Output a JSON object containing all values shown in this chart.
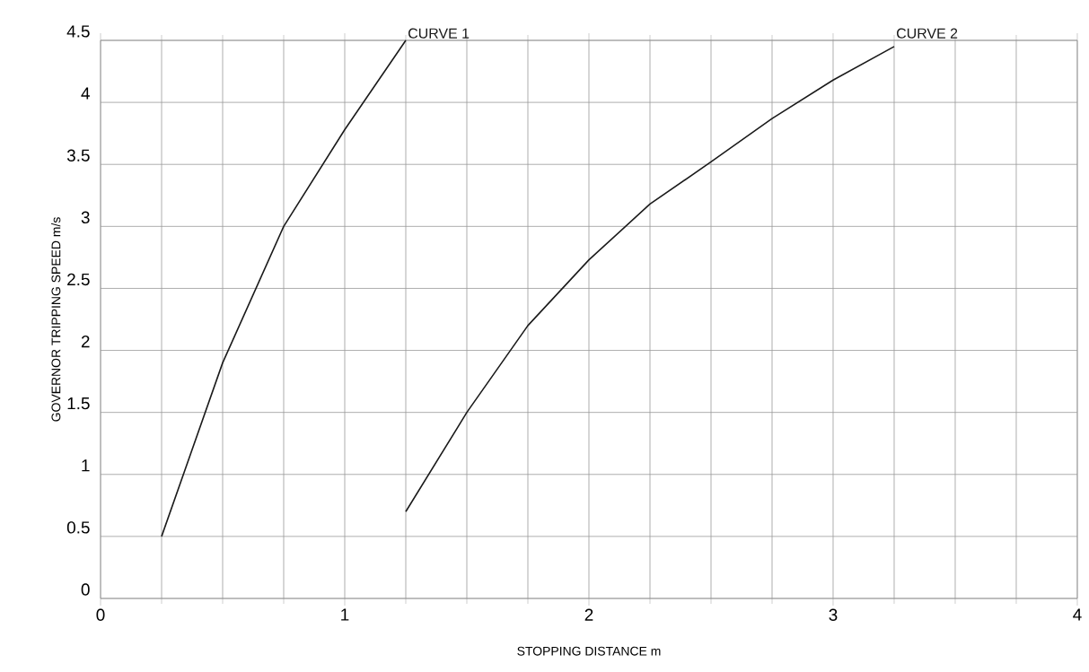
{
  "chart_data": {
    "type": "line",
    "xlabel": "STOPPING DISTANCE m",
    "ylabel": "GOVERNOR TRIPPING SPEED  m/s",
    "xlim": [
      0,
      4
    ],
    "ylim": [
      0,
      4.5
    ],
    "xticks": [
      0,
      1,
      2,
      3,
      4
    ],
    "yticks": [
      0,
      0.5,
      1,
      1.5,
      2,
      2.5,
      3,
      3.5,
      4,
      4.5
    ],
    "grid": true,
    "marker": "none",
    "line_style": "solid",
    "series": [
      {
        "name": "CURVE 1",
        "color": "#1a1a1a",
        "x": [
          0.25,
          0.5,
          0.75,
          1.0,
          1.25
        ],
        "values": [
          0.5,
          1.9,
          3.0,
          3.78,
          4.5
        ]
      },
      {
        "name": "CURVE 2",
        "color": "#1a1a1a",
        "x": [
          1.25,
          1.5,
          1.75,
          2.0,
          2.25,
          2.5,
          2.75,
          3.0,
          3.25
        ],
        "values": [
          0.7,
          1.5,
          2.2,
          2.73,
          3.18,
          3.52,
          3.87,
          4.18,
          4.45
        ]
      }
    ]
  }
}
